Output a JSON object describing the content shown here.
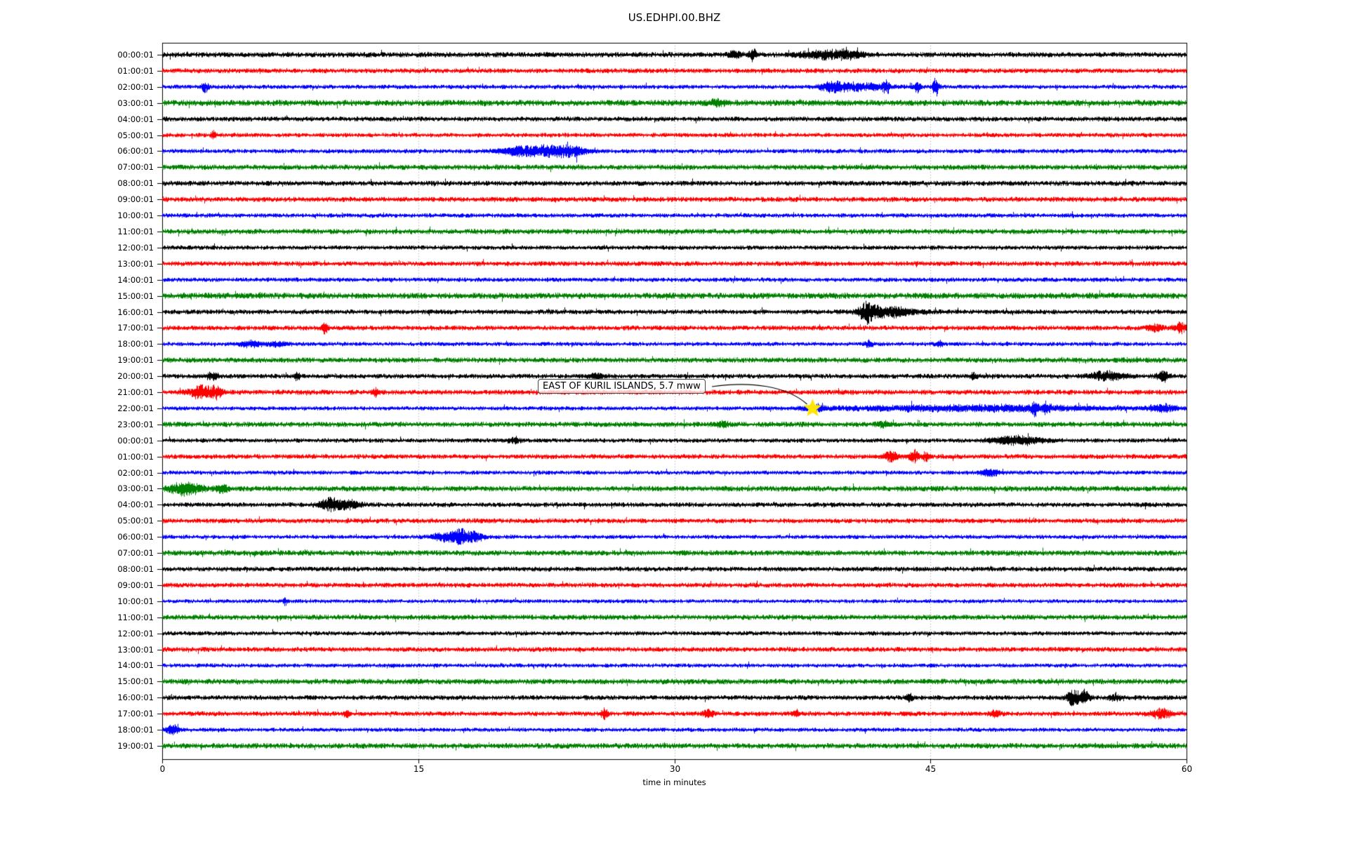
{
  "page": {
    "background": "#ffffff"
  },
  "colors": {
    "axis": "#000000",
    "grid": "#999999",
    "annotation_border": "#444444",
    "star": "#ffe600",
    "trace_black": "#000000",
    "trace_red": "#ff0000",
    "trace_blue": "#0000ff",
    "trace_green": "#008000"
  },
  "chart_data": {
    "type": "line",
    "subtype": "helicorder_dayplot",
    "title": "US.EDHPI.00.BHZ",
    "xlabel": "time in minutes",
    "xlim": [
      0,
      60
    ],
    "xticks": [
      "0",
      "15",
      "30",
      "45",
      "60"
    ],
    "xtick_minutes": [
      0,
      15,
      30,
      45,
      60
    ],
    "grid_minutes": [
      15,
      30,
      45
    ],
    "grid_style": "dotted-vertical",
    "legend": "none",
    "color_cycle": [
      "#000000",
      "#ff0000",
      "#0000ff",
      "#008000"
    ],
    "annotation": {
      "text": "EAST OF KURIL ISLANDS, 5.7 mww",
      "marker": "star-icon",
      "marker_color": "#ffe600",
      "row_index": 22,
      "row_label": "22:00:01",
      "minute": 38.1
    },
    "rows": [
      {
        "label": "00:00:01",
        "color": "#000000",
        "noise": 2.4,
        "events": [
          [
            33.5,
            5,
            0.25
          ],
          [
            34.6,
            8,
            0.15
          ],
          [
            38.7,
            5,
            1.0
          ],
          [
            40.2,
            4,
            0.6
          ]
        ]
      },
      {
        "label": "01:00:01",
        "color": "#ff0000",
        "noise": 2.2,
        "events": []
      },
      {
        "label": "02:00:01",
        "color": "#0000ff",
        "noise": 2.0,
        "events": [
          [
            2.5,
            9,
            0.12
          ],
          [
            39.2,
            5,
            0.5
          ],
          [
            40.8,
            5,
            1.2
          ],
          [
            42.4,
            8,
            0.15
          ],
          [
            44.2,
            7,
            0.15
          ],
          [
            45.3,
            14,
            0.12
          ]
        ]
      },
      {
        "label": "03:00:01",
        "color": "#008000",
        "noise": 2.8,
        "events": [
          [
            32.5,
            4,
            0.3
          ]
        ]
      },
      {
        "label": "04:00:01",
        "color": "#000000",
        "noise": 2.2,
        "events": []
      },
      {
        "label": "05:00:01",
        "color": "#ff0000",
        "noise": 2.0,
        "events": [
          [
            3.0,
            5,
            0.1
          ]
        ]
      },
      {
        "label": "06:00:01",
        "color": "#0000ff",
        "noise": 2.0,
        "events": [
          [
            20.8,
            5,
            0.8
          ],
          [
            22.6,
            7,
            1.0
          ],
          [
            24.0,
            5,
            0.6
          ]
        ]
      },
      {
        "label": "07:00:01",
        "color": "#008000",
        "noise": 2.4,
        "events": []
      },
      {
        "label": "08:00:01",
        "color": "#000000",
        "noise": 2.3,
        "events": []
      },
      {
        "label": "09:00:01",
        "color": "#ff0000",
        "noise": 2.3,
        "events": []
      },
      {
        "label": "10:00:01",
        "color": "#0000ff",
        "noise": 2.0,
        "events": []
      },
      {
        "label": "11:00:01",
        "color": "#008000",
        "noise": 2.4,
        "events": []
      },
      {
        "label": "12:00:01",
        "color": "#000000",
        "noise": 2.0,
        "events": []
      },
      {
        "label": "13:00:01",
        "color": "#ff0000",
        "noise": 2.2,
        "events": []
      },
      {
        "label": "14:00:01",
        "color": "#0000ff",
        "noise": 2.0,
        "events": []
      },
      {
        "label": "15:00:01",
        "color": "#008000",
        "noise": 2.8,
        "events": []
      },
      {
        "label": "16:00:01",
        "color": "#000000",
        "noise": 2.2,
        "events": [
          [
            41.3,
            13,
            0.35
          ],
          [
            42.6,
            7,
            1.0
          ]
        ]
      },
      {
        "label": "17:00:01",
        "color": "#ff0000",
        "noise": 2.2,
        "events": [
          [
            9.5,
            8,
            0.12
          ],
          [
            58.2,
            5,
            0.3
          ],
          [
            59.6,
            7,
            0.25
          ]
        ]
      },
      {
        "label": "18:00:01",
        "color": "#0000ff",
        "noise": 1.9,
        "events": [
          [
            5.2,
            4,
            0.5
          ],
          [
            6.8,
            4,
            0.4
          ],
          [
            41.4,
            5,
            0.15
          ],
          [
            45.5,
            4,
            0.15
          ]
        ]
      },
      {
        "label": "19:00:01",
        "color": "#008000",
        "noise": 2.4,
        "events": []
      },
      {
        "label": "20:00:01",
        "color": "#000000",
        "noise": 2.2,
        "events": [
          [
            2.9,
            5,
            0.25
          ],
          [
            7.9,
            7,
            0.12
          ],
          [
            25.5,
            4,
            0.3
          ],
          [
            47.5,
            4,
            0.15
          ],
          [
            55.3,
            6,
            0.7
          ],
          [
            58.6,
            7,
            0.25
          ]
        ]
      },
      {
        "label": "21:00:01",
        "color": "#ff0000",
        "noise": 2.3,
        "events": [
          [
            2.3,
            9,
            0.5
          ],
          [
            3.2,
            7,
            0.25
          ],
          [
            12.5,
            6,
            0.1
          ]
        ]
      },
      {
        "label": "22:00:01",
        "color": "#0000ff",
        "noise": 1.9,
        "events": [
          [
            38.3,
            4,
            0.4
          ],
          [
            44.0,
            2.5,
            4
          ],
          [
            50.5,
            3,
            4
          ],
          [
            51.1,
            9,
            0.12
          ],
          [
            51.8,
            8,
            0.12
          ],
          [
            58.7,
            5,
            0.6
          ]
        ]
      },
      {
        "label": "23:00:01",
        "color": "#008000",
        "noise": 2.4,
        "events": [
          [
            32.8,
            4,
            0.25
          ],
          [
            42.2,
            4,
            0.25
          ]
        ]
      },
      {
        "label": "00:00:01",
        "color": "#000000",
        "noise": 2.0,
        "events": [
          [
            20.6,
            4,
            0.25
          ],
          [
            50.1,
            6,
            1.0
          ]
        ]
      },
      {
        "label": "01:00:01",
        "color": "#ff0000",
        "noise": 2.2,
        "events": [
          [
            42.7,
            7,
            0.25
          ],
          [
            44.0,
            9,
            0.2
          ],
          [
            44.7,
            6,
            0.15
          ]
        ]
      },
      {
        "label": "02:00:01",
        "color": "#0000ff",
        "noise": 1.9,
        "events": [
          [
            48.5,
            5,
            0.4
          ]
        ]
      },
      {
        "label": "03:00:01",
        "color": "#008000",
        "noise": 2.5,
        "events": [
          [
            1.4,
            8,
            0.7
          ],
          [
            3.5,
            5,
            0.25
          ]
        ]
      },
      {
        "label": "04:00:01",
        "color": "#000000",
        "noise": 2.2,
        "events": [
          [
            9.8,
            9,
            0.4
          ],
          [
            10.9,
            6,
            0.5
          ]
        ]
      },
      {
        "label": "05:00:01",
        "color": "#ff0000",
        "noise": 2.2,
        "events": []
      },
      {
        "label": "06:00:01",
        "color": "#0000ff",
        "noise": 1.9,
        "events": [
          [
            16.5,
            6,
            0.5
          ],
          [
            17.4,
            10,
            0.25
          ],
          [
            18.2,
            7,
            0.4
          ]
        ]
      },
      {
        "label": "07:00:01",
        "color": "#008000",
        "noise": 2.5,
        "events": []
      },
      {
        "label": "08:00:01",
        "color": "#000000",
        "noise": 2.2,
        "events": []
      },
      {
        "label": "09:00:01",
        "color": "#ff0000",
        "noise": 2.2,
        "events": []
      },
      {
        "label": "10:00:01",
        "color": "#0000ff",
        "noise": 1.8,
        "events": [
          [
            7.2,
            6,
            0.08
          ]
        ]
      },
      {
        "label": "11:00:01",
        "color": "#008000",
        "noise": 2.4,
        "events": []
      },
      {
        "label": "12:00:01",
        "color": "#000000",
        "noise": 2.0,
        "events": []
      },
      {
        "label": "13:00:01",
        "color": "#ff0000",
        "noise": 2.2,
        "events": []
      },
      {
        "label": "14:00:01",
        "color": "#0000ff",
        "noise": 1.9,
        "events": []
      },
      {
        "label": "15:00:01",
        "color": "#008000",
        "noise": 2.5,
        "events": []
      },
      {
        "label": "16:00:01",
        "color": "#000000",
        "noise": 2.2,
        "events": [
          [
            43.8,
            5,
            0.15
          ],
          [
            53.3,
            11,
            0.2
          ],
          [
            53.9,
            12,
            0.25
          ],
          [
            55.8,
            4,
            0.25
          ]
        ]
      },
      {
        "label": "17:00:01",
        "color": "#ff0000",
        "noise": 2.2,
        "events": [
          [
            10.8,
            5,
            0.12
          ],
          [
            25.9,
            7,
            0.15
          ],
          [
            32.0,
            5,
            0.25
          ],
          [
            37.1,
            5,
            0.15
          ],
          [
            48.8,
            5,
            0.2
          ],
          [
            58.5,
            7,
            0.4
          ]
        ]
      },
      {
        "label": "18:00:01",
        "color": "#0000ff",
        "noise": 1.9,
        "events": [
          [
            0.6,
            7,
            0.25
          ]
        ]
      },
      {
        "label": "19:00:01",
        "color": "#008000",
        "noise": 2.5,
        "events": []
      }
    ]
  }
}
